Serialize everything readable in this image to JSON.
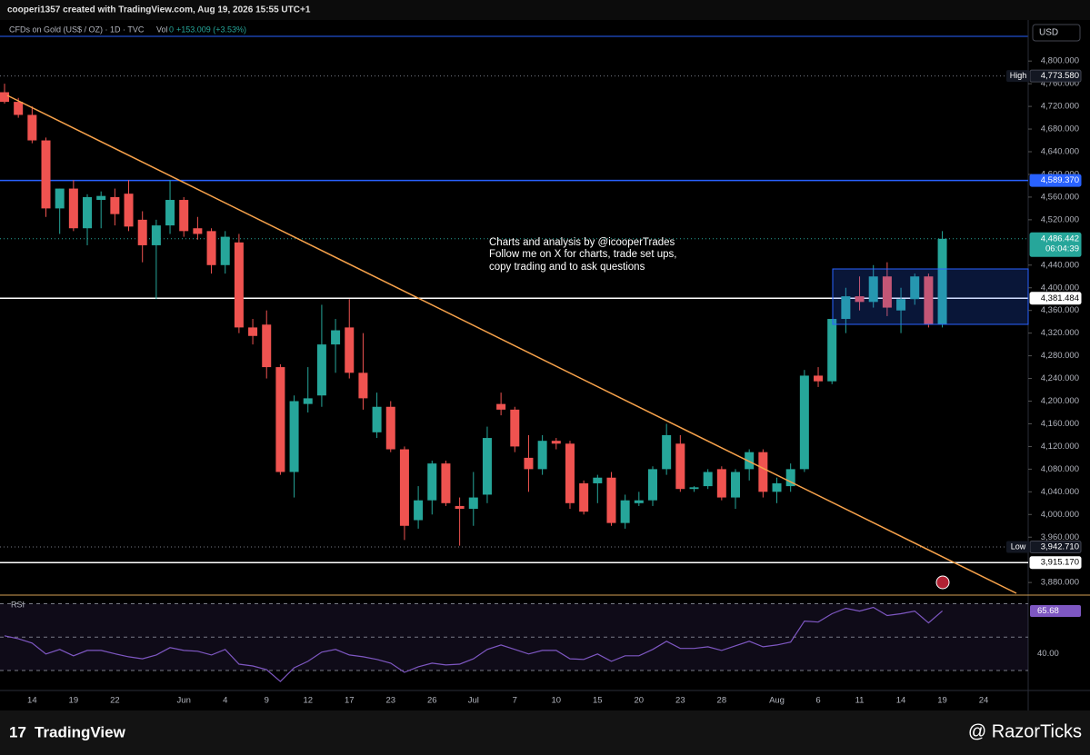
{
  "header": {
    "credit": "cooperi1357 created with TradingView.com, Aug 19, 2026 15:55 UTC+1",
    "symbol": "CFDs on Gold (US$ / OZ) · 1D · TVC",
    "vol": "Vol",
    "vol_value": "0",
    "change": "+153.009 (+3.53%)",
    "currency": "USD"
  },
  "annotation": [
    "Charts and analysis by @icooperTrades",
    "Follow me on X for charts, trade set ups,",
    "copy trading and to ask questions"
  ],
  "footer": {
    "logo": "TradingView",
    "watermark": "@ RazorTicks"
  },
  "chart_data": {
    "type": "candlestick",
    "categories": [
      null,
      null,
      "14",
      null,
      null,
      "19",
      null,
      null,
      "22",
      null,
      null,
      null,
      null,
      "Jun",
      null,
      null,
      "4",
      null,
      null,
      "9",
      null,
      null,
      "12",
      null,
      null,
      "17",
      null,
      null,
      "23",
      null,
      null,
      "26",
      null,
      null,
      "Jul",
      null,
      null,
      "7",
      null,
      null,
      "10",
      null,
      null,
      "15",
      null,
      null,
      "20",
      null,
      null,
      "23",
      null,
      null,
      "28",
      null,
      null,
      null,
      "Aug",
      null,
      null,
      "6",
      null,
      null,
      "11",
      null,
      null,
      "14",
      null,
      null,
      "19",
      null,
      null,
      "24"
    ],
    "open": [
      4745,
      4728,
      4705,
      4660,
      4540,
      4575,
      4505,
      4555,
      4560,
      4566,
      4520,
      4475,
      4510,
      4555,
      4505,
      4500,
      4440,
      4480,
      4330,
      4335,
      4260,
      4075,
      4195,
      4210,
      4300,
      4330,
      4250,
      4145,
      4190,
      4115,
      3990,
      4025,
      4090,
      4015,
      4010,
      4035,
      4195,
      4185,
      4100,
      4080,
      4130,
      4125,
      4055,
      4055,
      4065,
      3985,
      4020,
      4025,
      4080,
      4125,
      4045,
      4050,
      4080,
      4030,
      4080,
      4110,
      4040,
      4050,
      4080,
      4245,
      4235,
      4345,
      4385,
      4375,
      4420,
      4360,
      4380,
      4420,
      4335,
      null,
      null,
      null
    ],
    "high": [
      4760,
      4735,
      4720,
      4665,
      4575,
      4590,
      4565,
      4570,
      4575,
      4590,
      4535,
      4520,
      4590,
      4560,
      4525,
      4505,
      4500,
      4495,
      4345,
      4360,
      4265,
      4210,
      4260,
      4370,
      4345,
      4380,
      4320,
      4215,
      4200,
      4120,
      4050,
      4095,
      4095,
      4030,
      4075,
      4155,
      4215,
      4190,
      4140,
      4140,
      4135,
      4130,
      4060,
      4070,
      4075,
      4035,
      4040,
      4085,
      4160,
      4140,
      4050,
      4080,
      4085,
      4080,
      4115,
      4115,
      4065,
      4090,
      4255,
      4260,
      4345,
      4400,
      4420,
      4440,
      4445,
      4400,
      4425,
      4425,
      4500,
      null,
      null,
      null
    ],
    "low": [
      4725,
      4700,
      4655,
      4525,
      4495,
      4500,
      4475,
      4505,
      4510,
      4500,
      4445,
      4380,
      4495,
      4490,
      4485,
      4425,
      4425,
      4320,
      4300,
      4240,
      4070,
      4030,
      4180,
      4190,
      4250,
      4240,
      4185,
      4135,
      4110,
      3955,
      3975,
      4000,
      4015,
      3945,
      3980,
      4020,
      4175,
      4110,
      4040,
      4070,
      4115,
      4010,
      4000,
      4020,
      3980,
      3975,
      4015,
      4015,
      4070,
      4040,
      4040,
      4045,
      4025,
      4010,
      4060,
      4030,
      4020,
      4040,
      4075,
      4225,
      4230,
      4320,
      4360,
      4365,
      4350,
      4320,
      4370,
      4330,
      4330,
      null,
      null,
      null
    ],
    "close": [
      4728,
      4705,
      4660,
      4540,
      4575,
      4505,
      4560,
      4562,
      4530,
      4508,
      4475,
      4510,
      4555,
      4500,
      4495,
      4440,
      4490,
      4330,
      4315,
      4260,
      4075,
      4200,
      4205,
      4300,
      4325,
      4250,
      4205,
      4190,
      4115,
      3980,
      4025,
      4090,
      4020,
      4010,
      4030,
      4135,
      4185,
      4120,
      4080,
      4130,
      4125,
      4020,
      4005,
      4065,
      3985,
      4025,
      4025,
      4080,
      4140,
      4045,
      4048,
      4075,
      4030,
      4075,
      4110,
      4040,
      4055,
      4080,
      4245,
      4235,
      4345,
      4385,
      4375,
      4420,
      4365,
      4380,
      4420,
      4335,
      4486.442,
      null,
      null,
      null
    ],
    "up_color": "#26a69a",
    "down_color": "#ef5350",
    "ylim": [
      3861,
      4850
    ],
    "yticks": [
      {
        "value": 4800,
        "label": "4,800.000"
      },
      {
        "value": 4760,
        "label": "4,760.000"
      },
      {
        "value": 4720,
        "label": "4,720.000"
      },
      {
        "value": 4680,
        "label": "4,680.000"
      },
      {
        "value": 4640,
        "label": "4,640.000"
      },
      {
        "value": 4600,
        "label": "4,600.000"
      },
      {
        "value": 4560,
        "label": "4,560.000"
      },
      {
        "value": 4520,
        "label": "4,520.000"
      },
      {
        "value": 4440,
        "label": "4,440.000"
      },
      {
        "value": 4400,
        "label": "4,400.000"
      },
      {
        "value": 4360,
        "label": "4,360.000"
      },
      {
        "value": 4320,
        "label": "4,320.000"
      },
      {
        "value": 4280,
        "label": "4,280.000"
      },
      {
        "value": 4240,
        "label": "4,240.000"
      },
      {
        "value": 4200,
        "label": "4,200.000"
      },
      {
        "value": 4160,
        "label": "4,160.000"
      },
      {
        "value": 4120,
        "label": "4,120.000"
      },
      {
        "value": 4080,
        "label": "4,080.000"
      },
      {
        "value": 4040,
        "label": "4,040.000"
      },
      {
        "value": 4000,
        "label": "4,000.000"
      },
      {
        "value": 3960,
        "label": "3,960.000"
      },
      {
        "value": 3880,
        "label": "3,880.000"
      }
    ],
    "price_lines": [
      {
        "name": "High",
        "price": {
          "value": 4773.58,
          "label": "4,773.580"
        },
        "line_color": "#787b86",
        "label_color": "#131722",
        "dotted": true
      },
      {
        "price": {
          "value": 4589.37,
          "label": "4,589.370"
        },
        "line_color": "#2962ff",
        "label_color": "#2962ff",
        "dotted": false
      },
      {
        "price": {
          "value": 4486.442,
          "label": "4,486.442"
        },
        "countdown": "06:04:39",
        "line_color": "#26a69a",
        "label_color": "#26a69a",
        "dotted": true
      },
      {
        "price": {
          "value": 4381.484,
          "label": "4,381.484"
        },
        "line_color": "#ffffff",
        "label_color": "#ffffff",
        "dotted": false
      },
      {
        "name": "Low",
        "price": {
          "value": 3942.71,
          "label": "3,942.710"
        },
        "line_color": "#787b86",
        "label_color": "#131722",
        "dotted": true
      },
      {
        "price": {
          "value": 3915.17,
          "label": "3,915.170"
        },
        "line_color": "#ffffff",
        "label_color": "#ffffff",
        "dotted": false
      }
    ],
    "rsi": {
      "name": "RSI",
      "color": "#7e57c2",
      "ylim": [
        18,
        73
      ],
      "levels": [
        70,
        50,
        30
      ],
      "yticks": [
        {
          "value": 40,
          "label": "40.00"
        }
      ],
      "values": [
        50.8,
        49,
        46.4,
        39.9,
        42.6,
        38.8,
        42,
        42,
        40,
        38.2,
        37,
        39.3,
        43.7,
        42,
        41.5,
        39.3,
        42.6,
        33.8,
        32.7,
        30.5,
        23.4,
        31.6,
        35.5,
        41,
        42.6,
        39.3,
        38.2,
        36.6,
        34.4,
        28.9,
        32.2,
        34.4,
        33.3,
        33.8,
        37,
        42.6,
        45.3,
        42.6,
        39.9,
        42,
        42,
        37,
        36.6,
        39.9,
        35.5,
        38.8,
        38.8,
        42.6,
        47.5,
        43.2,
        43.2,
        44.2,
        42,
        44.8,
        47.5,
        44.2,
        45.3,
        47,
        59.6,
        59,
        64,
        67.3,
        65.6,
        67.8,
        62.9,
        64,
        65.6,
        58.5,
        65.68,
        null,
        null,
        null
      ]
    }
  }
}
